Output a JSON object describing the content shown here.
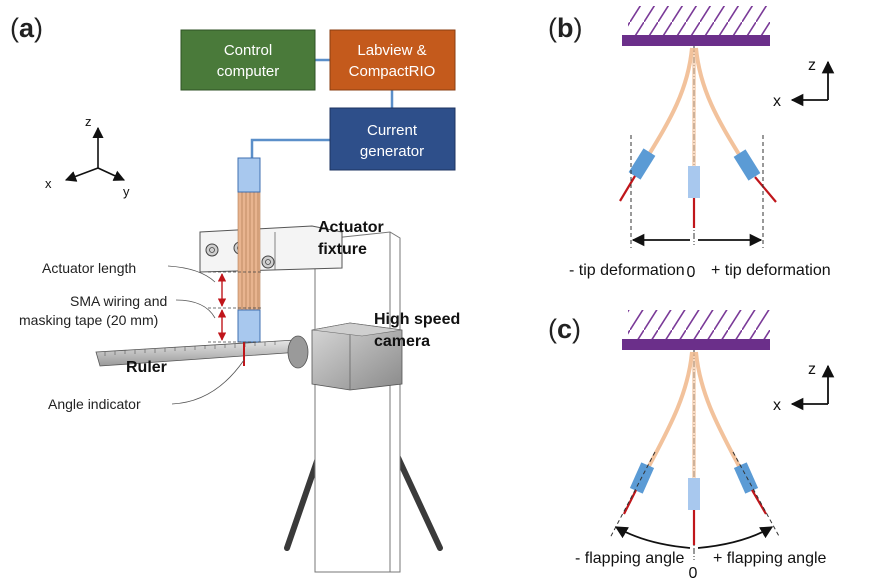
{
  "panels": {
    "a": {
      "label_open": "(",
      "label_letter": "a",
      "label_close": ")",
      "control_box": [
        "Control",
        "computer"
      ],
      "labview_box": [
        "Labview &",
        "CompactRIO"
      ],
      "current_box": [
        "Current",
        "generator"
      ],
      "actuator_fixture": [
        "Actuator",
        "fixture"
      ],
      "high_speed_camera": [
        "High speed",
        "camera"
      ],
      "ruler": "Ruler",
      "actuator_length": "Actuator length",
      "sma_wiring": [
        "SMA wiring and",
        "masking tape (20 mm)"
      ],
      "angle_indicator": "Angle indicator",
      "axes": {
        "z": "z",
        "x": "x",
        "y": "y"
      }
    },
    "b": {
      "label_open": "(",
      "label_letter": "b",
      "label_close": ")",
      "neg_label": "- tip deformation",
      "zero": "0",
      "pos_label": "+ tip deformation",
      "axes": {
        "z": "z",
        "x": "x"
      }
    },
    "c": {
      "label_open": "(",
      "label_letter": "c",
      "label_close": ")",
      "neg_label": "- flapping angle",
      "zero": "0",
      "pos_label": "+ flapping angle",
      "axes": {
        "z": "z",
        "x": "x"
      }
    }
  },
  "colors": {
    "control": "#4a7a3a",
    "labview": "#c45a1c",
    "current": "#2e4f8a",
    "mount": "#6b2f8a",
    "flap": "#f2c29c",
    "tape": "#5b9bd5",
    "wire": "#c0161b"
  }
}
